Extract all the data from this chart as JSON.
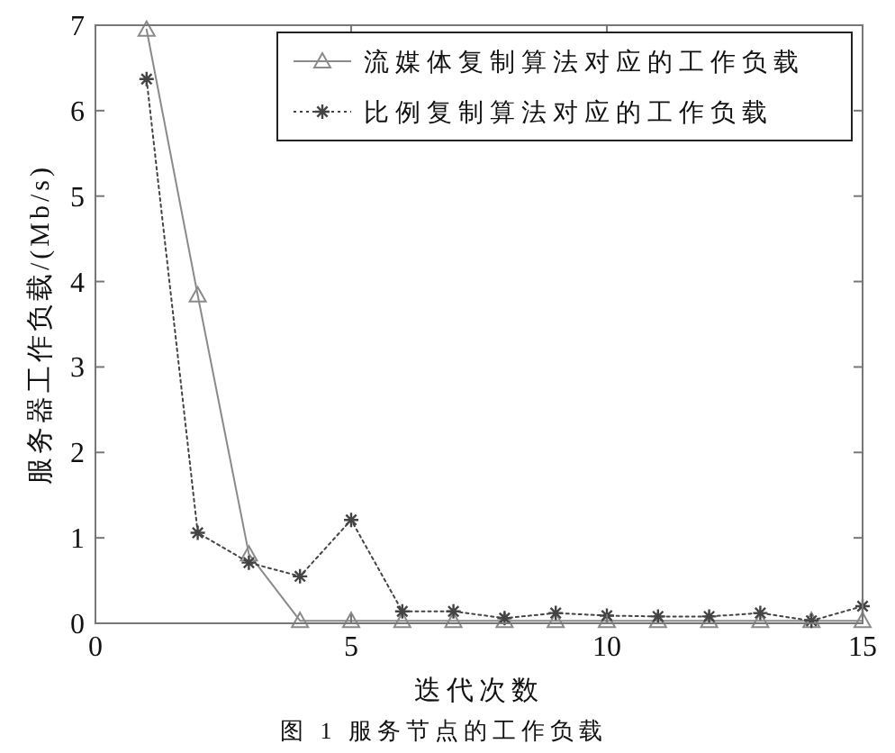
{
  "chart_data": {
    "type": "line",
    "xlabel": "迭代次数",
    "ylabel": "服务器工作负载/(Mb/s)",
    "annotations": [
      "图 1  服务节点的工作负载"
    ],
    "x": [
      1,
      2,
      3,
      4,
      5,
      6,
      7,
      8,
      9,
      10,
      11,
      12,
      13,
      14,
      15
    ],
    "series": [
      {
        "name": "流媒体复制算法对应的工作负载",
        "color": "#8a8a8a",
        "marker": "triangle",
        "line_style": "solid",
        "values": [
          6.95,
          3.84,
          0.81,
          0.03,
          0.03,
          0.03,
          0.03,
          0.03,
          0.03,
          0.03,
          0.03,
          0.03,
          0.03,
          0.03,
          0.03
        ]
      },
      {
        "name": "比例复制算法对应的工作负载",
        "color": "#444444",
        "marker": "cross",
        "line_style": "dotted",
        "values": [
          6.37,
          1.06,
          0.71,
          0.55,
          1.21,
          0.14,
          0.14,
          0.06,
          0.12,
          0.09,
          0.08,
          0.08,
          0.12,
          0.03,
          0.2
        ]
      }
    ],
    "xlim": [
      0,
      15
    ],
    "ylim": [
      0,
      7
    ],
    "xticks": [
      0,
      5,
      10,
      15
    ],
    "yticks": [
      0,
      1,
      2,
      3,
      4,
      5,
      6,
      7
    ],
    "grid": false,
    "legend": "top right"
  }
}
